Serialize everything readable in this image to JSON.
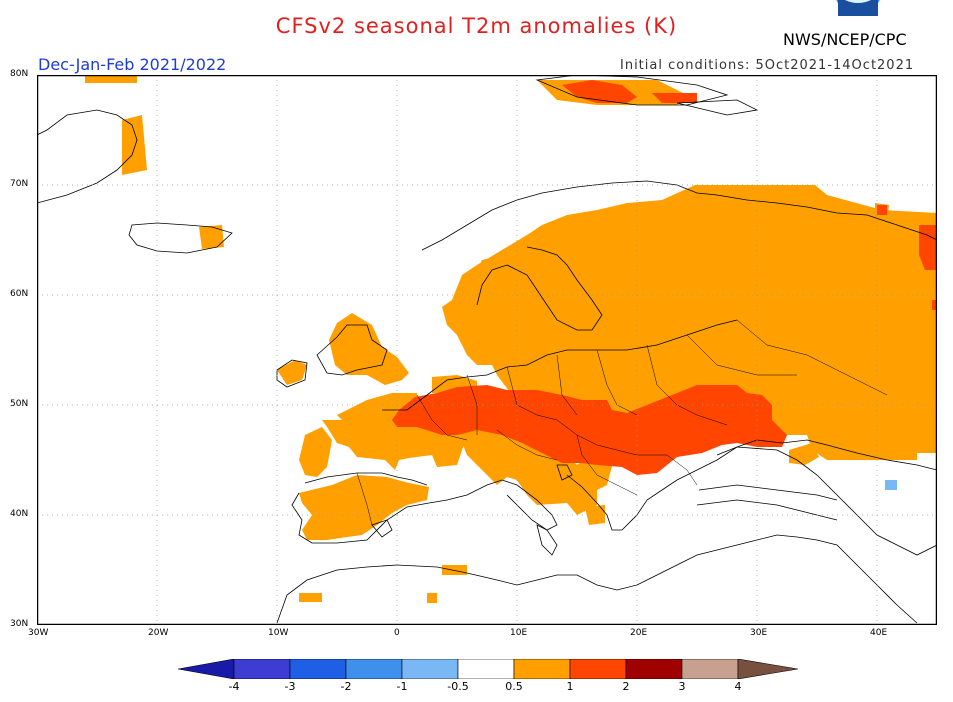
{
  "header": {
    "title": "CFSv2 seasonal T2m anomalies (K)",
    "agency": "NWS/NCEP/CPC",
    "season": "Dec-Jan-Feb 2021/2022",
    "initial_conditions": "Initial conditions: 5Oct2021-14Oct2021"
  },
  "map": {
    "lon_range": [
      -30,
      45
    ],
    "lat_range": [
      30,
      80
    ],
    "lon_ticks": [
      "30W",
      "20W",
      "10W",
      "0",
      "10E",
      "20E",
      "30E",
      "40E"
    ],
    "lat_ticks": [
      "30N",
      "40N",
      "50N",
      "60N",
      "70N",
      "80N"
    ],
    "grid": "dotted",
    "fills": [
      {
        "bin": "0.5 to 1",
        "color": "#ffa000",
        "regions": [
          "Northern Europe and Scandinavia",
          "Western Russia",
          "Iberia",
          "France",
          "British Isles (west)",
          "Turkey (west)",
          "Svalbard"
        ]
      },
      {
        "bin": "1 to 2",
        "color": "#ff4500",
        "regions": [
          "Central Europe",
          "Balkans",
          "Ukraine",
          "Svalbard (east)"
        ]
      },
      {
        "bin": "-1 to -0.5",
        "color": "#7ab8f5",
        "regions": [
          "Caucasus (small area)"
        ]
      }
    ]
  },
  "colorbar": {
    "labels": [
      "-4",
      "-3",
      "-2",
      "-1",
      "-0.5",
      "0.5",
      "1",
      "2",
      "3",
      "4"
    ],
    "colors": [
      "#1a1aa8",
      "#3d3dd4",
      "#1e5fe6",
      "#3f8fec",
      "#7ab8f5",
      "#ffffff",
      "#ffa000",
      "#ff4500",
      "#a00000",
      "#c8a090",
      "#785040"
    ]
  }
}
